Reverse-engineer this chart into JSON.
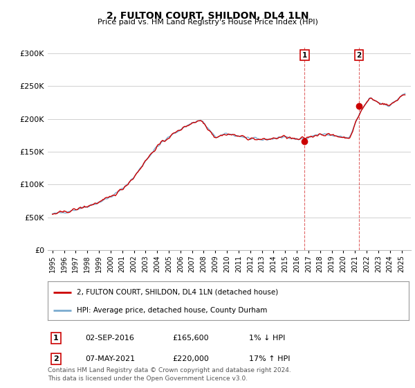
{
  "title": "2, FULTON COURT, SHILDON, DL4 1LN",
  "subtitle": "Price paid vs. HM Land Registry's House Price Index (HPI)",
  "legend_line1": "2, FULTON COURT, SHILDON, DL4 1LN (detached house)",
  "legend_line2": "HPI: Average price, detached house, County Durham",
  "transaction1_label": "1",
  "transaction1_date": "02-SEP-2016",
  "transaction1_price": "£165,600",
  "transaction1_hpi": "1% ↓ HPI",
  "transaction1_x": 2016.67,
  "transaction1_y": 165600,
  "transaction2_label": "2",
  "transaction2_date": "07-MAY-2021",
  "transaction2_price": "£220,000",
  "transaction2_hpi": "17% ↑ HPI",
  "transaction2_x": 2021.35,
  "transaction2_y": 220000,
  "footnote_line1": "Contains HM Land Registry data © Crown copyright and database right 2024.",
  "footnote_line2": "This data is licensed under the Open Government Licence v3.0.",
  "line_color_red": "#cc0000",
  "line_color_blue": "#7aabcf",
  "dot_color": "#cc0000",
  "vline_color": "#cc0000",
  "background_color": "#ffffff",
  "grid_color": "#d0d0d0",
  "ylim": [
    0,
    310000
  ],
  "yticks": [
    0,
    50000,
    100000,
    150000,
    200000,
    250000,
    300000
  ],
  "xlim_left": 1994.6,
  "xlim_right": 2025.8
}
